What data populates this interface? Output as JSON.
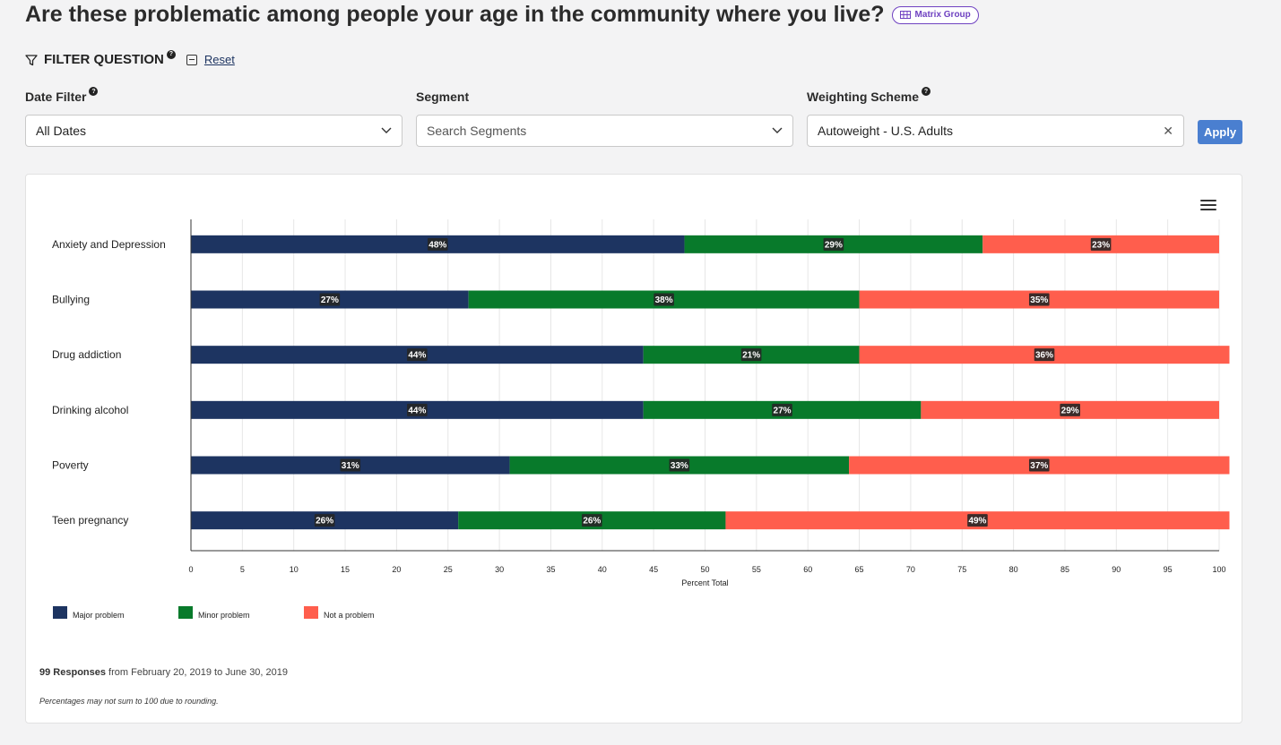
{
  "page": {
    "title": "Are these problematic among people your age in the community where you live?",
    "badge_label": "Matrix Group"
  },
  "filter": {
    "heading": "FILTER QUESTION",
    "help_glyph": "?",
    "reset_label": "Reset"
  },
  "fields": {
    "date_filter": {
      "label": "Date Filter",
      "value": "All Dates"
    },
    "segment": {
      "label": "Segment",
      "placeholder": "Search Segments"
    },
    "weighting": {
      "label": "Weighting Scheme",
      "value": "Autoweight - U.S. Adults"
    },
    "apply_label": "Apply",
    "clear_glyph": "✕"
  },
  "colors": {
    "major": "#1d3461",
    "minor": "#087a2b",
    "not": "#ff5e4d",
    "label_bg": "#262626"
  },
  "chart_data": {
    "type": "bar",
    "orientation": "horizontal",
    "stacked": true,
    "categories": [
      "Anxiety and Depression",
      "Bullying",
      "Drug addiction",
      "Drinking alcohol",
      "Poverty",
      "Teen pregnancy"
    ],
    "series": [
      {
        "name": "Major problem",
        "values": [
          48,
          27,
          44,
          44,
          31,
          26
        ]
      },
      {
        "name": "Minor problem",
        "values": [
          29,
          38,
          21,
          27,
          33,
          26
        ]
      },
      {
        "name": "Not a problem",
        "values": [
          23,
          35,
          36,
          29,
          37,
          49
        ]
      }
    ],
    "data_labels": [
      [
        "48%",
        "29%",
        "23%"
      ],
      [
        "27%",
        "38%",
        "35%"
      ],
      [
        "44%",
        "21%",
        "36%"
      ],
      [
        "44%",
        "27%",
        "29%"
      ],
      [
        "31%",
        "33%",
        "37%"
      ],
      [
        "26%",
        "26%",
        "49%"
      ]
    ],
    "xlabel": "Percent Total",
    "ylabel": "",
    "xlim": [
      0,
      100
    ],
    "xticks": [
      0,
      5,
      10,
      15,
      20,
      25,
      30,
      35,
      40,
      45,
      50,
      55,
      60,
      65,
      70,
      75,
      80,
      85,
      90,
      95,
      100
    ],
    "grid": true,
    "legend_position": "bottom-left"
  },
  "footer": {
    "responses_count": "99 Responses",
    "responses_range": "from February 20, 2019 to June 30, 2019",
    "note": "Percentages may not sum to 100 due to rounding."
  }
}
